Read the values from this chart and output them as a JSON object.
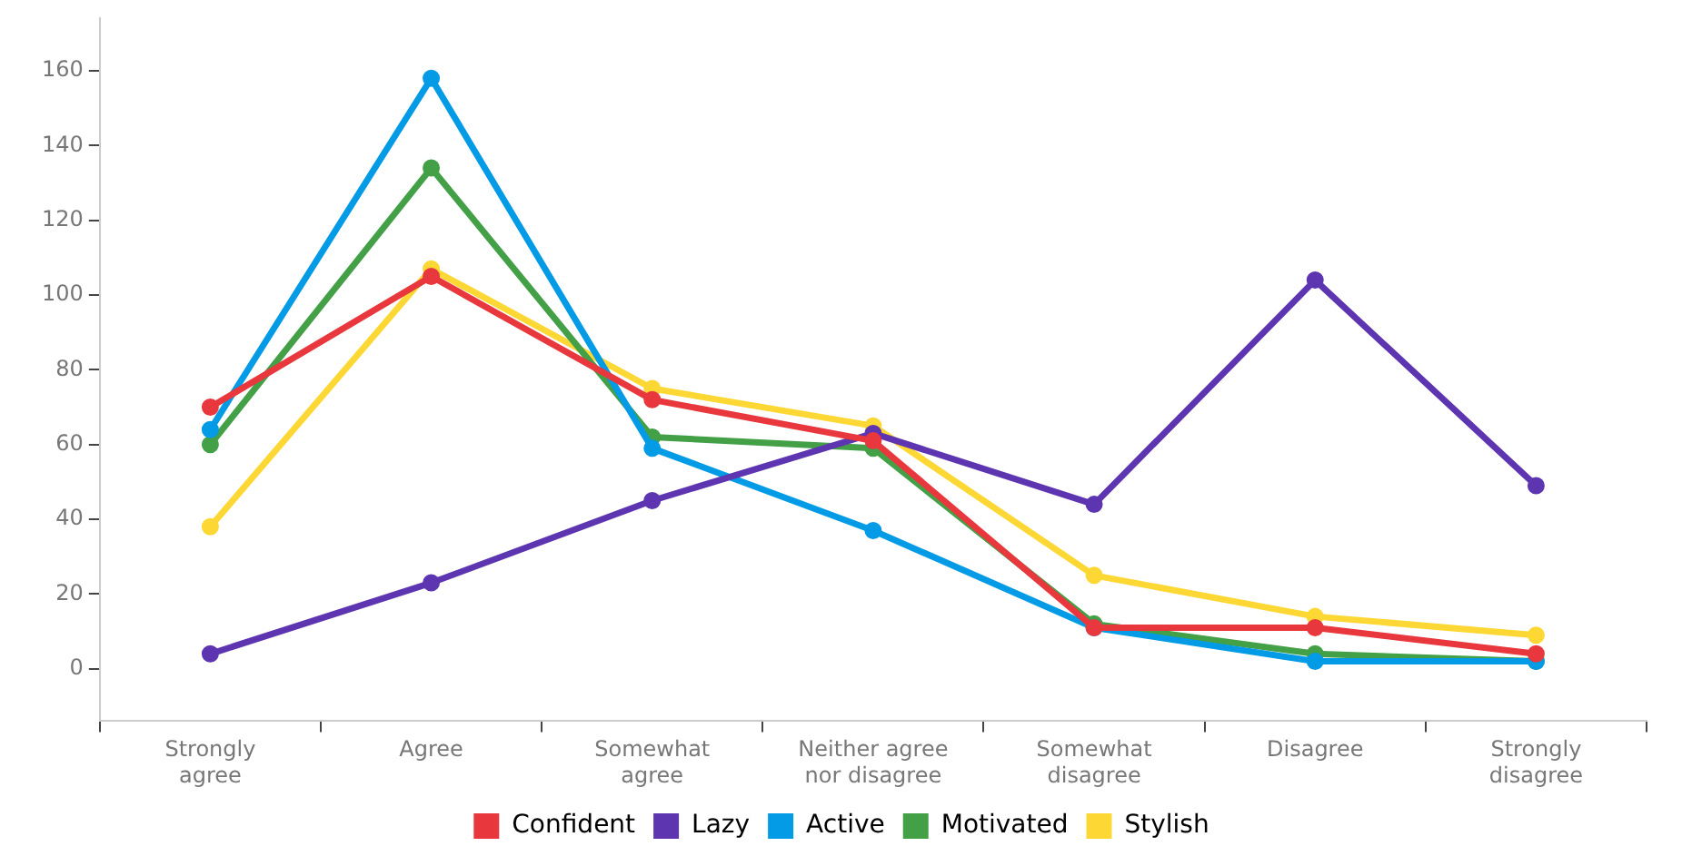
{
  "chart_data": {
    "type": "line",
    "categories": [
      "Strongly agree",
      "Agree",
      "Somewhat agree",
      "Neither agree nor disagree",
      "Somewhat disagree",
      "Disagree",
      "Strongly disagree"
    ],
    "series": [
      {
        "name": "Confident",
        "color": "#e8383d",
        "values": [
          70,
          105,
          72,
          61,
          11,
          11,
          4
        ]
      },
      {
        "name": "Lazy",
        "color": "#5e35b1",
        "values": [
          4,
          23,
          45,
          63,
          44,
          104,
          49
        ]
      },
      {
        "name": "Active",
        "color": "#039be5",
        "values": [
          64,
          158,
          59,
          37,
          11,
          2,
          2
        ]
      },
      {
        "name": "Motivated",
        "color": "#43a047",
        "values": [
          60,
          134,
          62,
          59,
          12,
          4,
          2
        ]
      },
      {
        "name": "Stylish",
        "color": "#fdd835",
        "values": [
          38,
          107,
          75,
          65,
          25,
          14,
          9
        ]
      }
    ],
    "ylim": [
      -14,
      174
    ],
    "yticks": [
      0,
      20,
      40,
      60,
      80,
      100,
      120,
      140,
      160
    ],
    "grid": false,
    "legend": "bottom",
    "marker": "circle",
    "line_style": "solid"
  }
}
